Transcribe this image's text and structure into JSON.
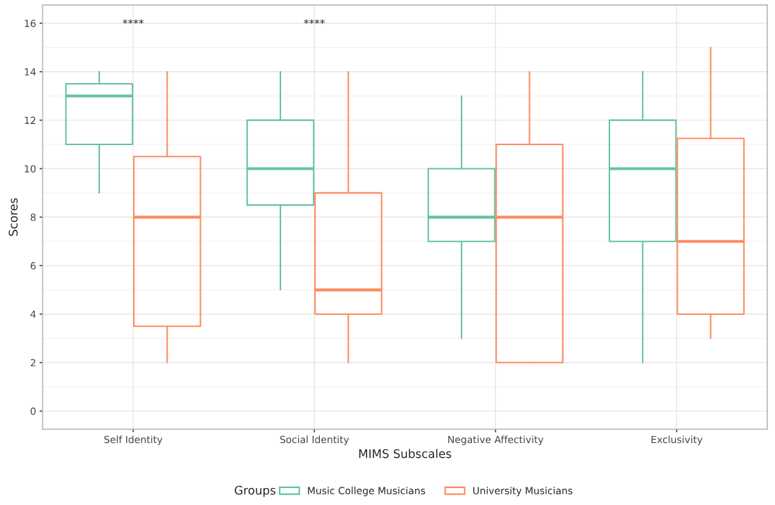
{
  "chart_data": {
    "type": "box",
    "xlabel": "MIMS Subscales",
    "ylabel": "Scores",
    "legend_title": "Groups",
    "legend": "bottom",
    "grid": true,
    "categories": [
      "Self Identity",
      "Social Identity",
      "Negative Affectivity",
      "Exclusivity"
    ],
    "ylim": [
      -0.75,
      16.75
    ],
    "yticks": [
      0,
      2,
      4,
      6,
      8,
      10,
      12,
      14,
      16
    ],
    "series": [
      {
        "name": "Music College Musicians",
        "color": "#66c2a5",
        "boxes": [
          {
            "low": 9,
            "q1": 11,
            "median": 13,
            "q3": 13.5,
            "high": 14
          },
          {
            "low": 5,
            "q1": 8.5,
            "median": 10,
            "q3": 12,
            "high": 14
          },
          {
            "low": 3,
            "q1": 7,
            "median": 8,
            "q3": 10,
            "high": 13
          },
          {
            "low": 2,
            "q1": 7,
            "median": 10,
            "q3": 12,
            "high": 14
          }
        ]
      },
      {
        "name": "University Musicians",
        "color": "#fc8d62",
        "boxes": [
          {
            "low": 2,
            "q1": 3.5,
            "median": 8,
            "q3": 10.5,
            "high": 14
          },
          {
            "low": 2,
            "q1": 4,
            "median": 5,
            "q3": 9,
            "high": 14
          },
          {
            "low": 2,
            "q1": 2,
            "median": 8,
            "q3": 11,
            "high": 14
          },
          {
            "low": 3,
            "q1": 4,
            "median": 7,
            "q3": 11.25,
            "high": 15
          }
        ]
      }
    ],
    "annotations": [
      "****",
      "****"
    ]
  }
}
